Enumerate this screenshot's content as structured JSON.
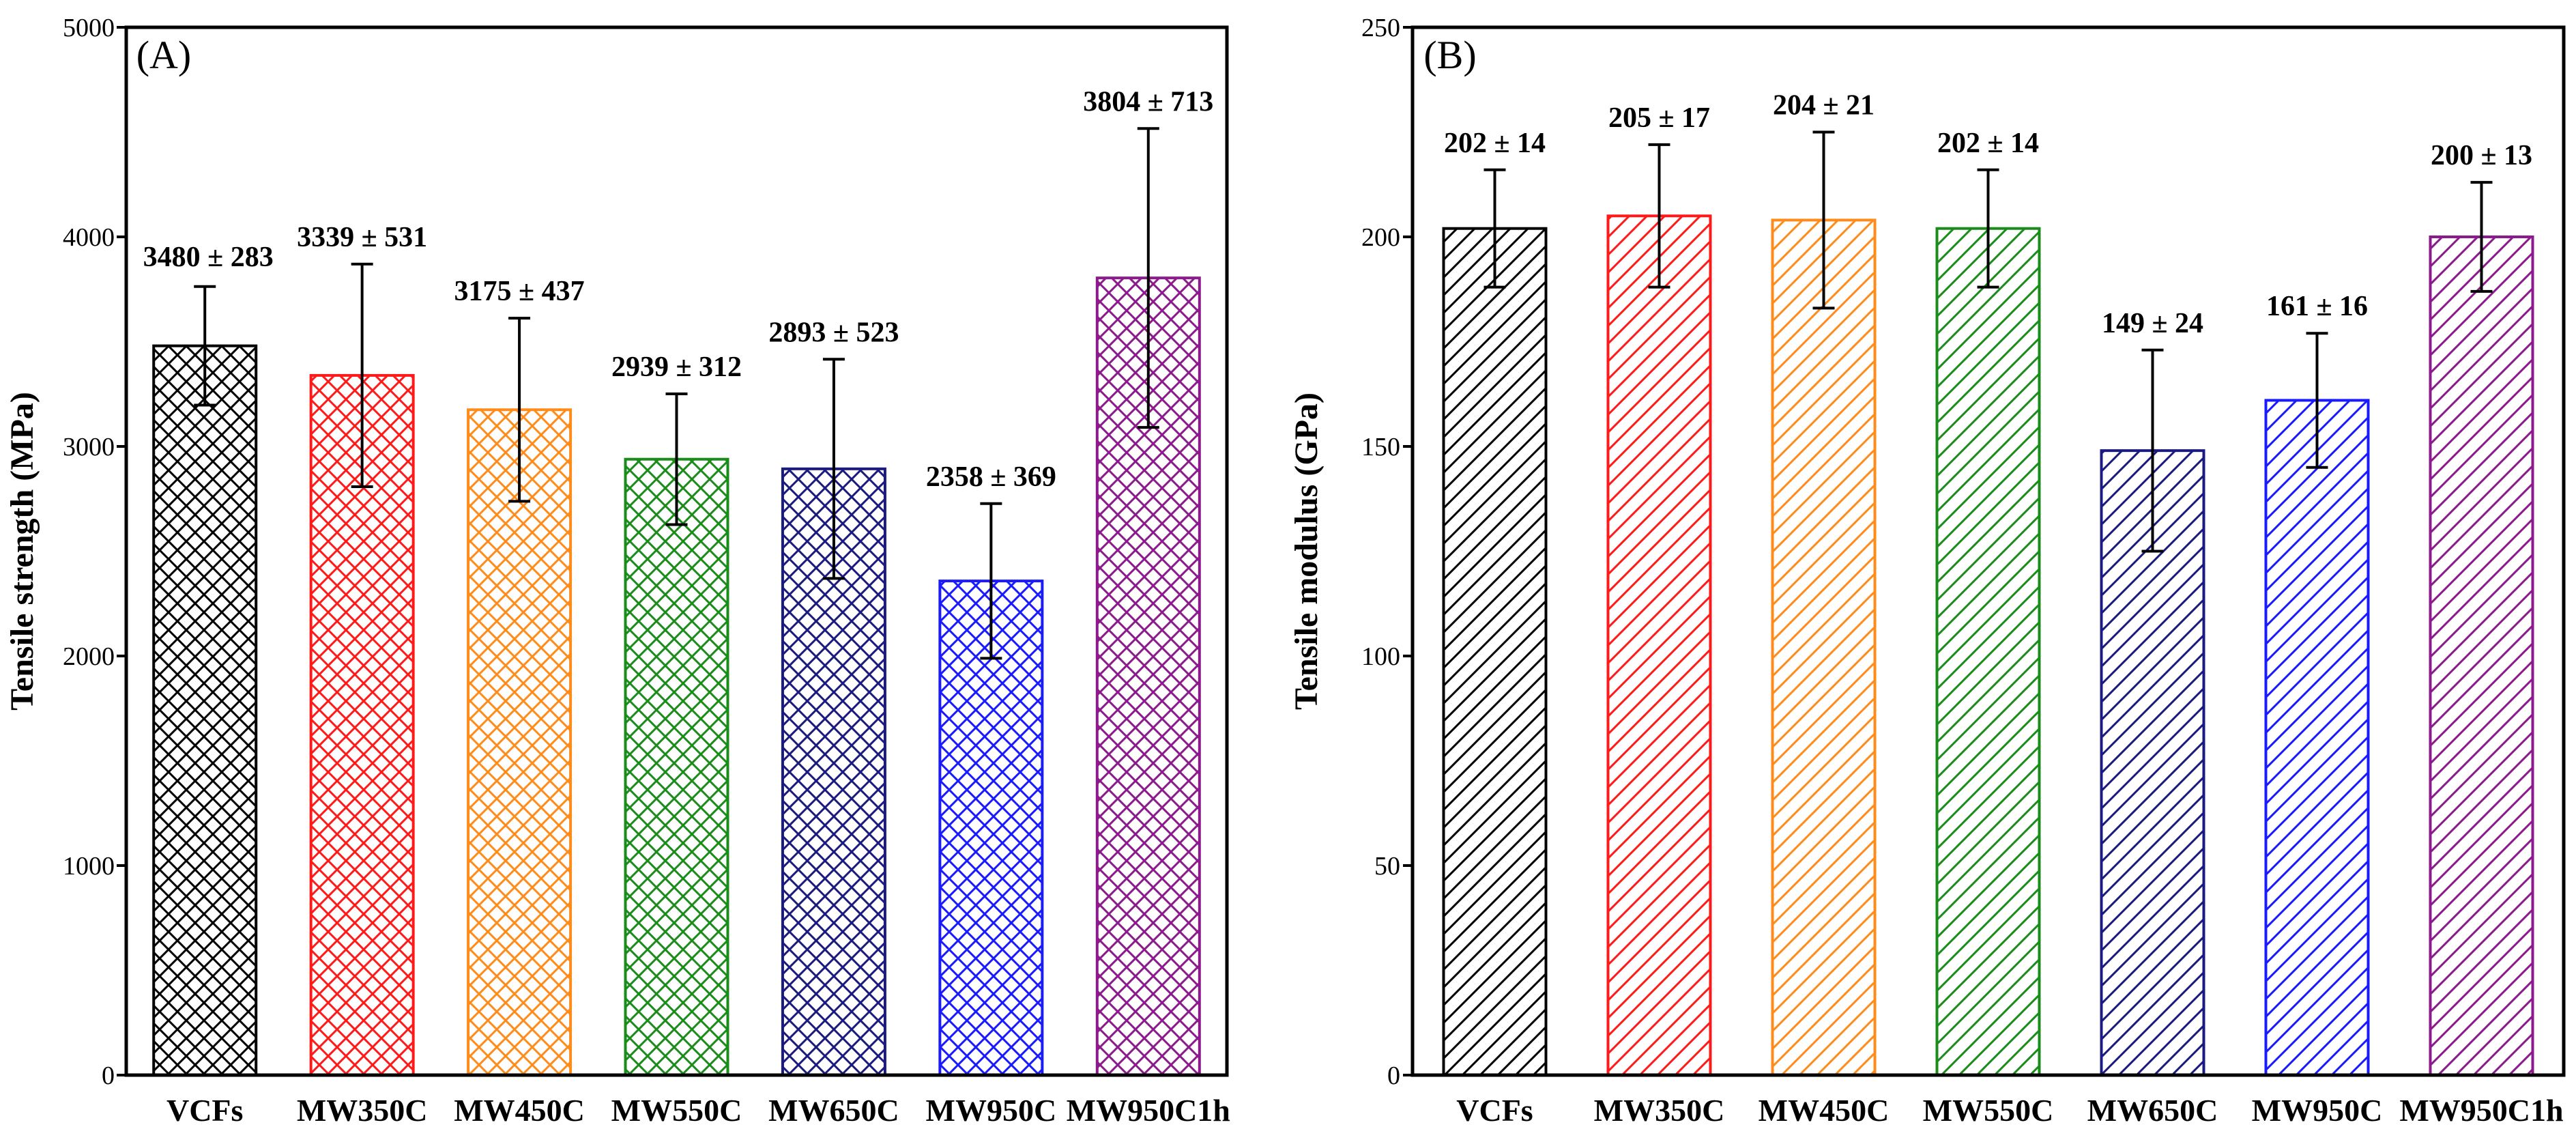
{
  "chart_data": [
    {
      "type": "bar",
      "panel_label": "(A)",
      "title": "",
      "xlabel": "",
      "ylabel": "Tensile strength (MPa)",
      "ylim": [
        0,
        5000
      ],
      "yticks": [
        0,
        1000,
        2000,
        3000,
        4000,
        5000
      ],
      "pattern": "crosshatch",
      "categories": [
        "VCFs",
        "MW350C",
        "MW450C",
        "MW550C",
        "MW650C",
        "MW950C",
        "MW950C1h"
      ],
      "values": [
        3480,
        3339,
        3175,
        2939,
        2893,
        2358,
        3804
      ],
      "errors": [
        283,
        531,
        437,
        312,
        523,
        369,
        713
      ],
      "data_labels": [
        "3480 ± 283",
        "3339 ± 531",
        "3175 ± 437",
        "2939 ± 312",
        "2893 ± 523",
        "2358 ± 369",
        "3804 ± 713"
      ],
      "colors": [
        "#000000",
        "#ff1a1a",
        "#ff8c1a",
        "#1a8c1a",
        "#1a1a80",
        "#1a1aff",
        "#8c1a8c"
      ]
    },
    {
      "type": "bar",
      "panel_label": "(B)",
      "title": "",
      "xlabel": "",
      "ylabel": "Tensile modulus (GPa)",
      "ylim": [
        0,
        250
      ],
      "yticks": [
        0,
        50,
        100,
        150,
        200,
        250
      ],
      "pattern": "diagonal",
      "categories": [
        "VCFs",
        "MW350C",
        "MW450C",
        "MW550C",
        "MW650C",
        "MW950C",
        "MW950C1h"
      ],
      "values": [
        202,
        205,
        204,
        202,
        149,
        161,
        200
      ],
      "errors": [
        14,
        17,
        21,
        14,
        24,
        16,
        13
      ],
      "data_labels": [
        "202 ± 14",
        "205 ± 17",
        "204 ± 21",
        "202 ± 14",
        "149 ± 24",
        "161 ± 16",
        "200 ± 13"
      ],
      "colors": [
        "#000000",
        "#ff1a1a",
        "#ff8c1a",
        "#1a8c1a",
        "#1a1a80",
        "#1a1aff",
        "#8c1a8c"
      ]
    }
  ]
}
